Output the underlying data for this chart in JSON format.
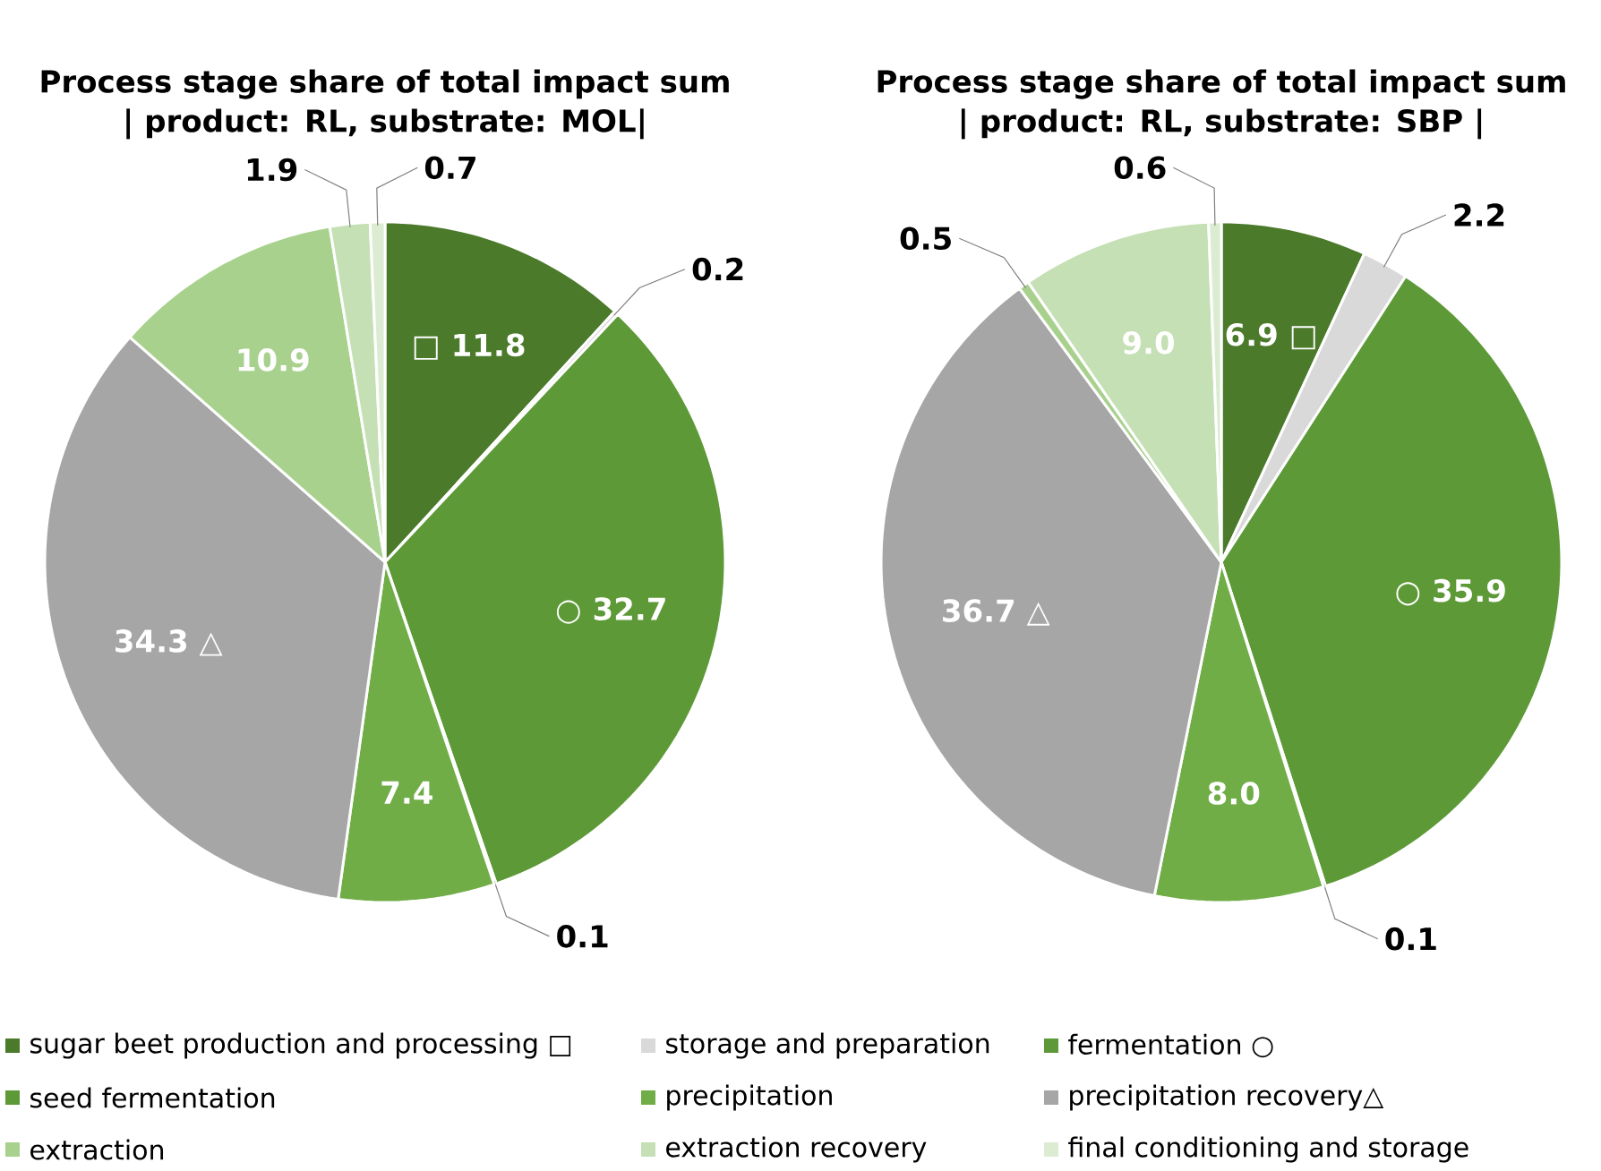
{
  "chart_data": [
    {
      "type": "pie",
      "title": "Process stage share of total impact sum",
      "subtitle": "| product: RL, substrate: MOL|",
      "categories": [
        "sugar beet production and processing □",
        "storage and preparation",
        "fermentation ○",
        "seed fermentation",
        "precipitation",
        "precipitation recovery△",
        "extraction",
        "extraction recovery",
        "final conditioning and storage"
      ],
      "values": [
        11.8,
        0.2,
        32.7,
        0.1,
        7.4,
        34.3,
        10.9,
        1.9,
        0.7
      ],
      "value_labels": [
        "□ 11.8",
        "0.2",
        "○ 32.7",
        "0.1",
        "7.4",
        "34.3 △",
        "10.9",
        "1.9",
        "0.7"
      ],
      "colors": [
        "#4b7a2b",
        "#d9d9d9",
        "#5d9937",
        "#5d9937",
        "#70ad47",
        "#a6a6a6",
        "#a9d18e",
        "#c5e0b4",
        "#dcecd2"
      ],
      "legend": "bottom"
    },
    {
      "type": "pie",
      "title": "Process stage share of total impact sum",
      "subtitle": "| product: RL, substrate: SBP |",
      "categories": [
        null,
        null,
        null,
        null,
        null,
        null,
        null,
        null,
        null
      ],
      "values": [
        6.9,
        2.2,
        35.9,
        0.1,
        8.0,
        36.7,
        0.5,
        9.0,
        0.6
      ],
      "value_labels": [
        "6.9 □",
        "2.2",
        "○ 35.9",
        "0.1",
        "8.0",
        "36.7 △",
        "0.5",
        "9.0",
        "0.6"
      ],
      "colors": [
        "#4b7a2b",
        "#d9d9d9",
        "#5d9937",
        "#5d9937",
        "#70ad47",
        "#a6a6a6",
        "#a9d18e",
        "#c5e0b4",
        "#dcecd2"
      ]
    }
  ]
}
